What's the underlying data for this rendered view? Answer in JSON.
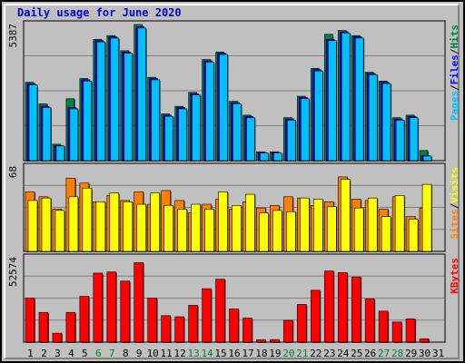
{
  "title": "Daily usage for June 2020",
  "chart_data": [
    {
      "type": "bar",
      "panel": "hits-files-pages",
      "ymax_label": "5387",
      "ylim": [
        0,
        5387
      ],
      "grid": true,
      "categories": [
        "1",
        "2",
        "3",
        "4",
        "5",
        "6",
        "7",
        "8",
        "9",
        "10",
        "11",
        "12",
        "13",
        "14",
        "15",
        "16",
        "17",
        "18",
        "19",
        "20",
        "21",
        "22",
        "23",
        "24",
        "25",
        "26",
        "27",
        "28",
        "29",
        "30",
        "31"
      ],
      "series": [
        {
          "name": "Hits",
          "color": "#008040",
          "values": [
            3100,
            2250,
            650,
            2450,
            3250,
            4800,
            4950,
            4350,
            5387,
            3300,
            1850,
            2150,
            2700,
            4000,
            4300,
            2350,
            1800,
            350,
            350,
            1700,
            2550,
            3650,
            5000,
            5150,
            4950,
            3500,
            3150,
            1700,
            1800,
            400,
            0
          ]
        },
        {
          "name": "Files",
          "color": "#0000ff",
          "values": [
            3050,
            2150,
            600,
            2100,
            3200,
            4750,
            4900,
            4300,
            5300,
            3250,
            1800,
            2100,
            2650,
            3950,
            4250,
            2300,
            1750,
            320,
            320,
            1650,
            2500,
            3600,
            4800,
            5100,
            4900,
            3450,
            3100,
            1650,
            1750,
            200,
            0
          ]
        },
        {
          "name": "Pages",
          "color": "#00c0ff",
          "values": [
            3000,
            2100,
            580,
            2050,
            3150,
            4700,
            4850,
            4250,
            5250,
            3200,
            1750,
            2050,
            2600,
            3900,
            4200,
            2250,
            1700,
            300,
            300,
            1600,
            2450,
            3550,
            4750,
            5050,
            4850,
            3400,
            3050,
            1600,
            1700,
            180,
            0
          ]
        }
      ]
    },
    {
      "type": "bar",
      "panel": "sites-visits",
      "ymax_label": "68",
      "ylim": [
        0,
        68
      ],
      "grid": true,
      "categories": [
        "1",
        "2",
        "3",
        "4",
        "5",
        "6",
        "7",
        "8",
        "9",
        "10",
        "11",
        "12",
        "13",
        "14",
        "15",
        "16",
        "17",
        "18",
        "19",
        "20",
        "21",
        "22",
        "23",
        "24",
        "25",
        "26",
        "27",
        "28",
        "29",
        "30",
        "31"
      ],
      "series": [
        {
          "name": "Sites",
          "color": "#ff8000",
          "values": [
            48,
            44,
            34,
            59,
            55,
            40,
            45,
            41,
            48,
            38,
            49,
            41,
            31,
            38,
            42,
            34,
            40,
            35,
            37,
            44,
            43,
            37,
            40,
            60,
            42,
            41,
            34,
            44,
            28,
            35,
            0
          ]
        },
        {
          "name": "Visits",
          "color": "#ffff00",
          "values": [
            41,
            43,
            33,
            44,
            51,
            40,
            47,
            40,
            38,
            47,
            37,
            34,
            38,
            34,
            48,
            37,
            46,
            31,
            33,
            32,
            43,
            42,
            36,
            58,
            35,
            43,
            28,
            45,
            26,
            54,
            0
          ]
        }
      ]
    },
    {
      "type": "bar",
      "panel": "kbytes",
      "ymax_label": "52574",
      "ylim": [
        0,
        52574
      ],
      "grid": true,
      "categories": [
        "1",
        "2",
        "3",
        "4",
        "5",
        "6",
        "7",
        "8",
        "9",
        "10",
        "11",
        "12",
        "13",
        "14",
        "15",
        "16",
        "17",
        "18",
        "19",
        "20",
        "21",
        "22",
        "23",
        "24",
        "25",
        "26",
        "27",
        "28",
        "29",
        "30",
        "31"
      ],
      "series": [
        {
          "name": "KBytes",
          "color": "#ff0000",
          "values": [
            27500,
            18500,
            5600,
            18500,
            28500,
            43000,
            43700,
            38000,
            49500,
            27500,
            16500,
            15800,
            23000,
            33300,
            39200,
            20700,
            15000,
            1500,
            1600,
            13600,
            23500,
            32300,
            44300,
            43300,
            40600,
            27000,
            19300,
            12500,
            14500,
            2100,
            0
          ]
        }
      ]
    }
  ],
  "legends": {
    "top": [
      {
        "text": "Pages",
        "color": "#00c0ff"
      },
      {
        "text": "/",
        "color": "#000000"
      },
      {
        "text": "Files",
        "color": "#0000ff"
      },
      {
        "text": "/",
        "color": "#000000"
      },
      {
        "text": "Hits",
        "color": "#008040"
      }
    ],
    "middle": [
      {
        "text": "Sites",
        "color": "#ff8000"
      },
      {
        "text": "/",
        "color": "#000000"
      },
      {
        "text": "Visits",
        "color": "#ffff00"
      }
    ],
    "bottom": [
      {
        "text": "KBytes",
        "color": "#ff0000"
      }
    ]
  },
  "x_labels": [
    {
      "text": "1",
      "color": "#000000"
    },
    {
      "text": "2",
      "color": "#000000"
    },
    {
      "text": "3",
      "color": "#000000"
    },
    {
      "text": "4",
      "color": "#000000"
    },
    {
      "text": "5",
      "color": "#000000"
    },
    {
      "text": "6",
      "color": "#008040"
    },
    {
      "text": "7",
      "color": "#008040"
    },
    {
      "text": "8",
      "color": "#000000"
    },
    {
      "text": "9",
      "color": "#000000"
    },
    {
      "text": "10",
      "color": "#000000"
    },
    {
      "text": "11",
      "color": "#000000"
    },
    {
      "text": "12",
      "color": "#000000"
    },
    {
      "text": "13",
      "color": "#008040"
    },
    {
      "text": "14",
      "color": "#008040"
    },
    {
      "text": "15",
      "color": "#000000"
    },
    {
      "text": "16",
      "color": "#000000"
    },
    {
      "text": "17",
      "color": "#000000"
    },
    {
      "text": "18",
      "color": "#000000"
    },
    {
      "text": "19",
      "color": "#000000"
    },
    {
      "text": "20",
      "color": "#008040"
    },
    {
      "text": "21",
      "color": "#008040"
    },
    {
      "text": "22",
      "color": "#000000"
    },
    {
      "text": "23",
      "color": "#000000"
    },
    {
      "text": "24",
      "color": "#000000"
    },
    {
      "text": "25",
      "color": "#000000"
    },
    {
      "text": "26",
      "color": "#000000"
    },
    {
      "text": "27",
      "color": "#008040"
    },
    {
      "text": "28",
      "color": "#008040"
    },
    {
      "text": "29",
      "color": "#000000"
    },
    {
      "text": "30",
      "color": "#000000"
    },
    {
      "text": "31",
      "color": "#000000"
    }
  ],
  "colors": {
    "background": "#c0c0c0",
    "title": "#0000cc",
    "grid": "#808080",
    "panel_border": "#000000"
  }
}
